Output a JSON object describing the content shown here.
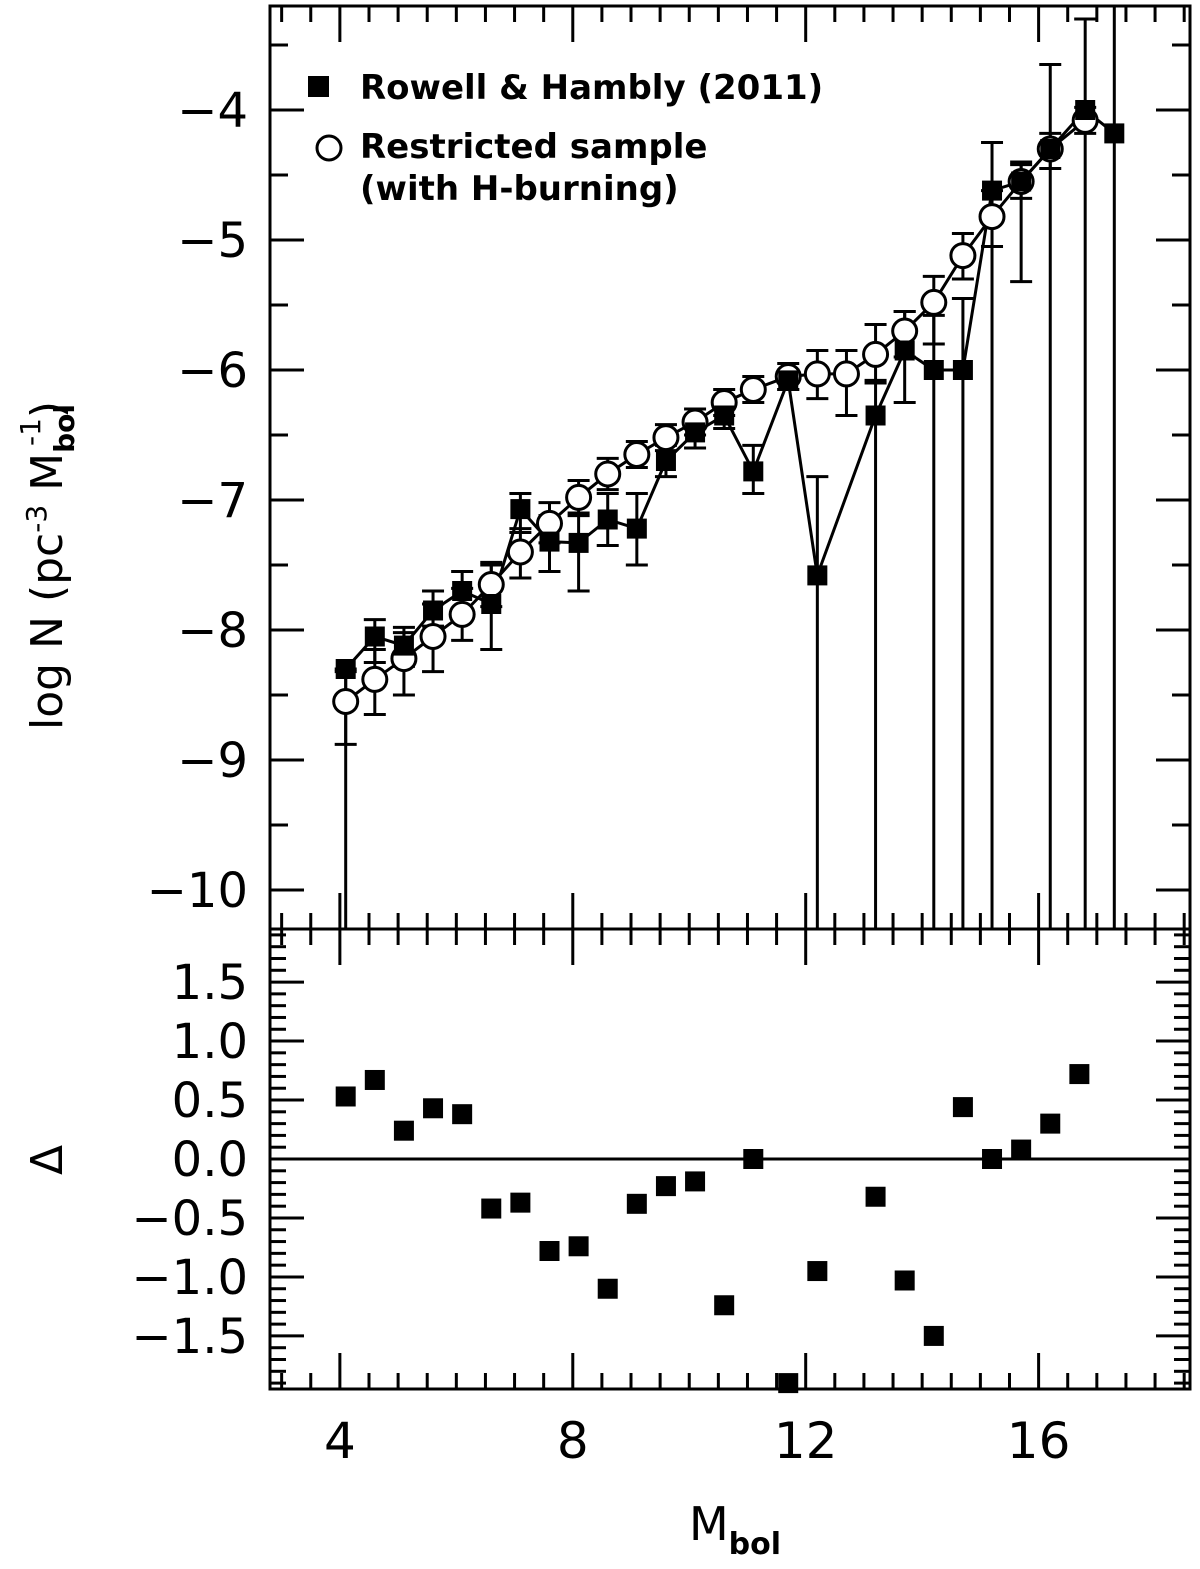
{
  "chart_data": [
    {
      "type": "scatter",
      "panel": "top",
      "xlabel": "M",
      "xlabel_sub": "bol",
      "ylabel": "log N (pc",
      "ylabel_sup": "-3",
      "ylabel_mid": " M",
      "ylabel_sub": "bol",
      "ylabel_sup2": "-1",
      "ylabel_end": ")",
      "xlim": [
        2.8,
        18.6
      ],
      "ylim": [
        -10.3,
        -3.2
      ],
      "xticks": [
        4,
        8,
        12,
        16
      ],
      "xtick_labels": [
        "4",
        "8",
        "12",
        "16"
      ],
      "yticks": [
        -10,
        -9,
        -8,
        -7,
        -6,
        -5,
        -4
      ],
      "ytick_labels": [
        "−10",
        "−9",
        "−8",
        "−7",
        "−6",
        "−5",
        "−4"
      ],
      "legend_position": "top-left",
      "series": [
        {
          "name": "Rowell & Hambly (2011)",
          "marker": "filled-square",
          "connected": true,
          "points": [
            {
              "x": 4.1,
              "y": -8.3,
              "lo": -10.3,
              "hi": -8.3
            },
            {
              "x": 4.6,
              "y": -8.05,
              "lo": -8.25,
              "hi": -7.92
            },
            {
              "x": 5.1,
              "y": -8.12,
              "lo": -8.28,
              "hi": -7.98
            },
            {
              "x": 5.6,
              "y": -7.85,
              "lo": -7.97,
              "hi": -7.7
            },
            {
              "x": 6.1,
              "y": -7.7,
              "lo": -7.88,
              "hi": -7.55
            },
            {
              "x": 6.6,
              "y": -7.8,
              "lo": -8.15,
              "hi": -7.5
            },
            {
              "x": 7.1,
              "y": -7.07,
              "lo": -7.25,
              "hi": -6.95
            },
            {
              "x": 7.6,
              "y": -7.32,
              "lo": -7.55,
              "hi": -7.12
            },
            {
              "x": 8.1,
              "y": -7.33,
              "lo": -7.7,
              "hi": -7.1
            },
            {
              "x": 8.6,
              "y": -7.15,
              "lo": -7.35,
              "hi": -6.95
            },
            {
              "x": 9.1,
              "y": -7.22,
              "lo": -7.5,
              "hi": -6.95
            },
            {
              "x": 9.6,
              "y": -6.7,
              "lo": -6.82,
              "hi": -6.58
            },
            {
              "x": 10.1,
              "y": -6.48,
              "lo": -6.6,
              "hi": -6.35
            },
            {
              "x": 10.6,
              "y": -6.35,
              "lo": -6.45,
              "hi": -6.25
            },
            {
              "x": 11.1,
              "y": -6.78,
              "lo": -6.95,
              "hi": -6.58
            },
            {
              "x": 11.7,
              "y": -6.08,
              "lo": -6.15,
              "hi": -6.0
            },
            {
              "x": 12.2,
              "y": -7.58,
              "lo": -10.3,
              "hi": -6.82
            },
            {
              "x": 13.2,
              "y": -6.35,
              "lo": -10.3,
              "hi": -6.08
            },
            {
              "x": 13.7,
              "y": -5.85,
              "lo": -6.25,
              "hi": -5.55
            },
            {
              "x": 14.2,
              "y": -6.0,
              "lo": -10.3,
              "hi": -5.58
            },
            {
              "x": 14.7,
              "y": -6.0,
              "lo": -10.3,
              "hi": -5.45
            },
            {
              "x": 15.2,
              "y": -4.62,
              "lo": -10.3,
              "hi": -4.25
            },
            {
              "x": 15.7,
              "y": -4.55,
              "lo": -5.32,
              "hi": -4.4
            },
            {
              "x": 16.2,
              "y": -4.3,
              "lo": -10.3,
              "hi": -3.65
            },
            {
              "x": 16.8,
              "y": -4.0,
              "lo": -10.3,
              "hi": -3.3
            },
            {
              "x": 17.3,
              "y": -4.18,
              "lo": -10.3,
              "hi": -3.2
            }
          ]
        },
        {
          "name": "Restricted sample (with H-burning)",
          "name_line1": "Restricted sample",
          "name_line2": "(with H-burning)",
          "marker": "open-circle",
          "connected": true,
          "points": [
            {
              "x": 4.1,
              "y": -8.55,
              "lo": -8.88,
              "hi": -8.32
            },
            {
              "x": 4.6,
              "y": -8.38,
              "lo": -8.65,
              "hi": -8.15
            },
            {
              "x": 5.1,
              "y": -8.22,
              "lo": -8.5,
              "hi": -8.02
            },
            {
              "x": 5.6,
              "y": -8.05,
              "lo": -8.32,
              "hi": -7.8
            },
            {
              "x": 6.1,
              "y": -7.88,
              "lo": -8.08,
              "hi": -7.68
            },
            {
              "x": 6.6,
              "y": -7.65,
              "lo": -7.82,
              "hi": -7.48
            },
            {
              "x": 7.1,
              "y": -7.4,
              "lo": -7.6,
              "hi": -7.22
            },
            {
              "x": 7.6,
              "y": -7.18,
              "lo": -7.33,
              "hi": -7.02
            },
            {
              "x": 8.1,
              "y": -6.98,
              "lo": -7.12,
              "hi": -6.85
            },
            {
              "x": 8.6,
              "y": -6.8,
              "lo": -6.92,
              "hi": -6.68
            },
            {
              "x": 9.1,
              "y": -6.65,
              "lo": -6.75,
              "hi": -6.55
            },
            {
              "x": 9.6,
              "y": -6.52,
              "lo": -6.62,
              "hi": -6.42
            },
            {
              "x": 10.1,
              "y": -6.4,
              "lo": -6.5,
              "hi": -6.3
            },
            {
              "x": 10.6,
              "y": -6.25,
              "lo": -6.35,
              "hi": -6.15
            },
            {
              "x": 11.1,
              "y": -6.15,
              "lo": -6.25,
              "hi": -6.05
            },
            {
              "x": 11.7,
              "y": -6.05,
              "lo": -6.15,
              "hi": -5.95
            },
            {
              "x": 12.2,
              "y": -6.03,
              "lo": -6.22,
              "hi": -5.85
            },
            {
              "x": 12.7,
              "y": -6.03,
              "lo": -6.35,
              "hi": -5.85
            },
            {
              "x": 13.2,
              "y": -5.88,
              "lo": -6.1,
              "hi": -5.65
            },
            {
              "x": 13.7,
              "y": -5.7,
              "lo": -5.9,
              "hi": -5.55
            },
            {
              "x": 14.2,
              "y": -5.48,
              "lo": -5.8,
              "hi": -5.28
            },
            {
              "x": 14.7,
              "y": -5.12,
              "lo": -5.3,
              "hi": -4.95
            },
            {
              "x": 15.2,
              "y": -4.82,
              "lo": -5.05,
              "hi": -4.62
            },
            {
              "x": 15.7,
              "y": -4.55,
              "lo": -4.68,
              "hi": -4.42
            },
            {
              "x": 16.2,
              "y": -4.3,
              "lo": -4.45,
              "hi": -4.18
            },
            {
              "x": 16.8,
              "y": -4.08,
              "lo": -4.18,
              "hi": -3.98
            }
          ]
        }
      ]
    },
    {
      "type": "scatter",
      "panel": "bottom",
      "xlabel": "M",
      "xlabel_sub": "bol",
      "ylabel": "Δ",
      "xlim": [
        2.8,
        18.6
      ],
      "ylim": [
        -1.95,
        1.95
      ],
      "yticks": [
        -1.5,
        -1.0,
        -0.5,
        0.0,
        0.5,
        1.0,
        1.5
      ],
      "ytick_labels": [
        "−1.5",
        "−1.0",
        "−0.5",
        "0.0",
        "0.5",
        "1.0",
        "1.5"
      ],
      "reference_line_y": 0.0,
      "series": [
        {
          "marker": "filled-square",
          "x": [
            4.1,
            4.6,
            5.1,
            5.6,
            6.1,
            6.6,
            7.1,
            7.6,
            8.1,
            8.6,
            9.1,
            9.6,
            10.1,
            10.6,
            11.1,
            11.7,
            12.2,
            13.2,
            13.7,
            14.2,
            14.7,
            15.2,
            15.7,
            16.2,
            16.7
          ],
          "y": [
            0.53,
            0.67,
            0.24,
            0.43,
            0.38,
            -0.42,
            -0.37,
            -0.78,
            -0.74,
            -1.1,
            -0.38,
            -0.23,
            -0.19,
            -1.24,
            0.0,
            -1.9,
            -0.95,
            -0.32,
            -1.03,
            -1.5,
            0.44,
            0.0,
            0.08,
            0.3,
            0.72
          ]
        }
      ]
    }
  ]
}
